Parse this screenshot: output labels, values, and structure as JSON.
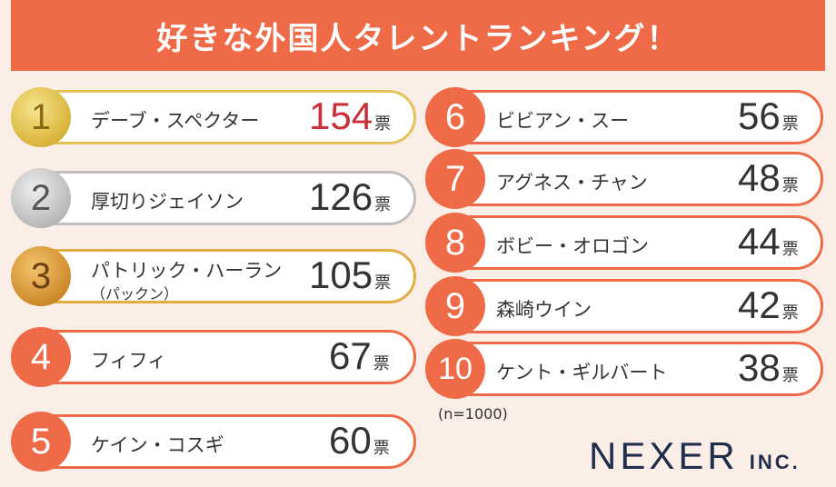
{
  "banner": {
    "title": "好きな外国人タレントランキング！"
  },
  "chart_data": {
    "type": "table",
    "title": "好きな外国人タレントランキング！",
    "unit": "票",
    "note": "(n=1000)",
    "rows": [
      {
        "rank": "1",
        "name": "デーブ・スペクター",
        "votes": "154"
      },
      {
        "rank": "2",
        "name": "厚切りジェイソン",
        "votes": "126"
      },
      {
        "rank": "3",
        "name": "パトリック・ハーラン",
        "sub": "（パックン）",
        "votes": "105"
      },
      {
        "rank": "4",
        "name": "フィフィ",
        "votes": "67"
      },
      {
        "rank": "5",
        "name": "ケイン・コスギ",
        "votes": "60"
      },
      {
        "rank": "6",
        "name": "ビビアン・スー",
        "votes": "56"
      },
      {
        "rank": "7",
        "name": "アグネス・チャン",
        "votes": "48"
      },
      {
        "rank": "8",
        "name": "ボビー・オロゴン",
        "votes": "44"
      },
      {
        "rank": "9",
        "name": "森崎ウイン",
        "votes": "42"
      },
      {
        "rank": "10",
        "name": "ケント・ギルバート",
        "votes": "38"
      }
    ]
  },
  "logo": {
    "main": "NEXER",
    "sub": "INC."
  },
  "colors": {
    "accent": "#ef6a47",
    "highlight": "#c9303a",
    "background": "#fbeee6"
  }
}
